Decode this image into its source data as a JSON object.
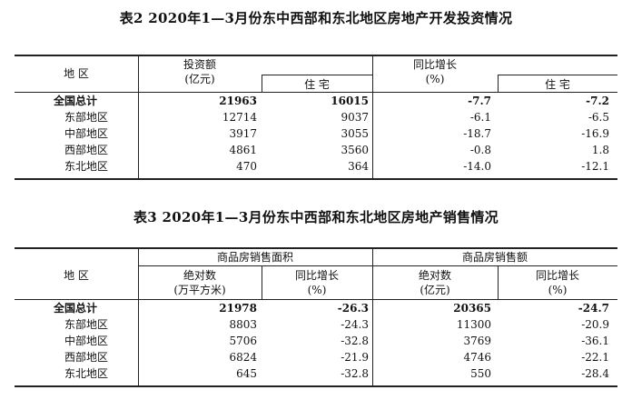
{
  "table2": {
    "title": "表2 2020年1—3月份东中西部和东北地区房地产开发投资情况",
    "header": {
      "region": "地 区",
      "investment": "投资额",
      "investment_unit": "(亿元)",
      "residential": "住 宅",
      "growth": "同比增长",
      "growth_unit": "(%)",
      "growth_residential": "住 宅"
    },
    "rows": [
      {
        "region": "全国总计",
        "investment": "21963",
        "residential": "16015",
        "growth": "-7.7",
        "growth_residential": "-7.2"
      },
      {
        "region": "东部地区",
        "investment": "12714",
        "residential": "9037",
        "growth": "-6.1",
        "growth_residential": "-6.5"
      },
      {
        "region": "中部地区",
        "investment": "3917",
        "residential": "3055",
        "growth": "-18.7",
        "growth_residential": "-16.9"
      },
      {
        "region": "西部地区",
        "investment": "4861",
        "residential": "3560",
        "growth": "-0.8",
        "growth_residential": "1.8"
      },
      {
        "region": "东北地区",
        "investment": "470",
        "residential": "364",
        "growth": "-14.0",
        "growth_residential": "-12.1"
      }
    ]
  },
  "table3": {
    "title": "表3 2020年1—3月份东中西部和东北地区房地产销售情况",
    "header": {
      "region": "地 区",
      "area_group": "商品房销售面积",
      "sales_group": "商品房销售额",
      "area_abs": "绝对数",
      "area_abs_unit": "(万平方米)",
      "area_growth": "同比增长",
      "area_growth_unit": "(%)",
      "sales_abs": "绝对数",
      "sales_abs_unit": "(亿元)",
      "sales_growth": "同比增长",
      "sales_growth_unit": "(%)"
    },
    "rows": [
      {
        "region": "全国总计",
        "area": "21978",
        "area_growth": "-26.3",
        "sales": "20365",
        "sales_growth": "-24.7"
      },
      {
        "region": "东部地区",
        "area": "8803",
        "area_growth": "-24.3",
        "sales": "11300",
        "sales_growth": "-20.9"
      },
      {
        "region": "中部地区",
        "area": "5706",
        "area_growth": "-32.8",
        "sales": "3769",
        "sales_growth": "-36.1"
      },
      {
        "region": "西部地区",
        "area": "6824",
        "area_growth": "-21.9",
        "sales": "4746",
        "sales_growth": "-22.1"
      },
      {
        "region": "东北地区",
        "area": "645",
        "area_growth": "-32.8",
        "sales": "550",
        "sales_growth": "-28.4"
      }
    ]
  }
}
